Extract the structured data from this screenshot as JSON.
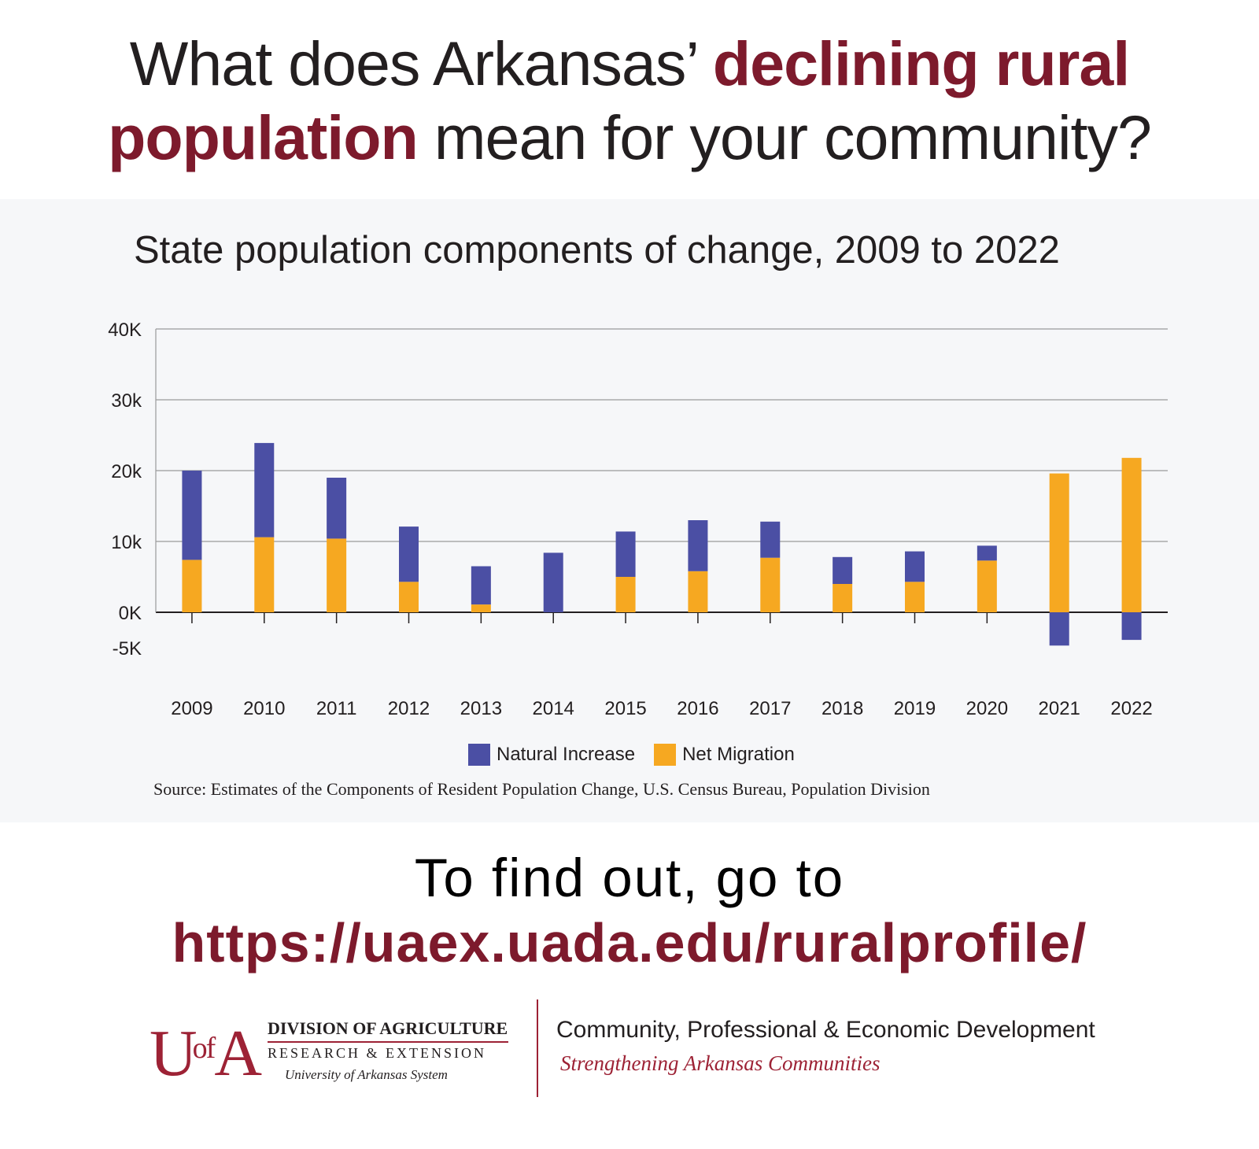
{
  "headline": {
    "part1": "What does Arkansas’ ",
    "part2": "declining rural",
    "part3": "population",
    "part4": " mean for your community?"
  },
  "chart_data": {
    "type": "bar",
    "title": "State population components of change, 2009 to 2022",
    "categories": [
      "2009",
      "2010",
      "2011",
      "2012",
      "2013",
      "2014",
      "2015",
      "2016",
      "2017",
      "2018",
      "2019",
      "2020",
      "2021",
      "2022"
    ],
    "series": [
      {
        "name": "Natural Increase",
        "color": "#4b4fa4",
        "values": [
          12600,
          13300,
          8600,
          7800,
          5400,
          8400,
          6400,
          7200,
          5100,
          3800,
          4300,
          2100,
          -4700,
          -3900
        ]
      },
      {
        "name": "Net Migration",
        "color": "#f6a821",
        "values": [
          7400,
          10600,
          10400,
          4300,
          1100,
          0,
          5000,
          5800,
          7700,
          4000,
          4300,
          7300,
          19600,
          21800
        ]
      }
    ],
    "stacked": true,
    "ylim": [
      -5000,
      40000
    ],
    "y_ticks": [
      {
        "value": -5000,
        "label": "-5K"
      },
      {
        "value": 0,
        "label": "0K"
      },
      {
        "value": 10000,
        "label": "10k"
      },
      {
        "value": 20000,
        "label": "20k"
      },
      {
        "value": 30000,
        "label": "30k"
      },
      {
        "value": 40000,
        "label": "40K"
      }
    ],
    "gridlines": [
      0,
      10000,
      20000,
      30000,
      40000
    ],
    "legend_position": "bottom",
    "xlabel": "",
    "ylabel": ""
  },
  "source": "Source: Estimates of the Components of Resident Population Change, U.S. Census Bureau, Population Division",
  "cta": {
    "line": "To find out, go to",
    "url": "https://uaex.uada.edu/ruralprofile/"
  },
  "logo": {
    "mark": "U",
    "mark_of": "of",
    "mark_a": "A",
    "line1": "DIVISION OF AGRICULTURE",
    "line2": "RESEARCH & EXTENSION",
    "line3": "University of Arkansas System"
  },
  "cped": {
    "title": "Community, Professional & Economic Development",
    "tagline": "Strengthening Arkansas Communities"
  }
}
